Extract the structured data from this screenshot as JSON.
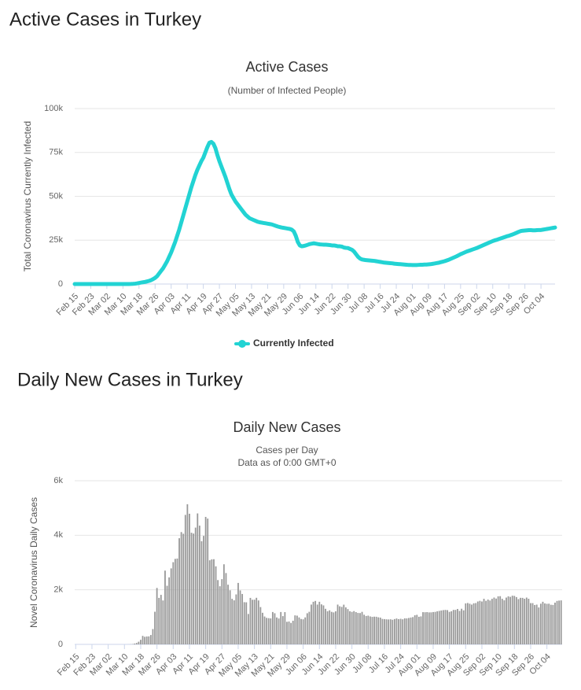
{
  "headings": [
    "Active Cases in Turkey",
    "Daily New Cases in Turkey"
  ],
  "chart_data": [
    {
      "type": "line",
      "title": "Active Cases",
      "subtitle": "(Number of Infected People)",
      "y_label": "Total Coronavirus Currently Infected",
      "ylim": [
        0,
        100000
      ],
      "yticks": [
        0,
        {
          "value": 25000,
          "label": "25k"
        },
        {
          "value": 50000,
          "label": "50k"
        },
        {
          "value": 75000,
          "label": "75k"
        },
        {
          "value": 100000,
          "label": "100k"
        }
      ],
      "grid": true,
      "legend": "bottom",
      "categories": [
        "Feb 15",
        null,
        null,
        null,
        null,
        null,
        null,
        null,
        "Feb 23",
        null,
        null,
        null,
        null,
        null,
        null,
        null,
        "Mar 02",
        null,
        null,
        null,
        null,
        null,
        null,
        null,
        "Mar 10",
        null,
        null,
        null,
        null,
        null,
        null,
        null,
        "Mar 18",
        null,
        null,
        null,
        null,
        null,
        null,
        null,
        "Mar 26",
        null,
        null,
        null,
        null,
        null,
        null,
        null,
        "Apr 03",
        null,
        null,
        null,
        null,
        null,
        null,
        null,
        "Apr 11",
        null,
        null,
        null,
        null,
        null,
        null,
        null,
        "Apr 19",
        null,
        null,
        null,
        null,
        null,
        null,
        null,
        "Apr 27",
        null,
        null,
        null,
        null,
        null,
        null,
        null,
        "May 05",
        null,
        null,
        null,
        null,
        null,
        null,
        null,
        "May 13",
        null,
        null,
        null,
        null,
        null,
        null,
        null,
        "May 21",
        null,
        null,
        null,
        null,
        null,
        null,
        null,
        "May 29",
        null,
        null,
        null,
        null,
        null,
        null,
        null,
        "Jun 06",
        null,
        null,
        null,
        null,
        null,
        null,
        null,
        "Jun 14",
        null,
        null,
        null,
        null,
        null,
        null,
        null,
        "Jun 22",
        null,
        null,
        null,
        null,
        null,
        null,
        null,
        "Jun 30",
        null,
        null,
        null,
        null,
        null,
        null,
        null,
        "Jul 08",
        null,
        null,
        null,
        null,
        null,
        null,
        null,
        "Jul 16",
        null,
        null,
        null,
        null,
        null,
        null,
        null,
        "Jul 24",
        null,
        null,
        null,
        null,
        null,
        null,
        null,
        "Aug 01",
        null,
        null,
        null,
        null,
        null,
        null,
        null,
        "Aug 09",
        null,
        null,
        null,
        null,
        null,
        null,
        null,
        "Aug 17",
        null,
        null,
        null,
        null,
        null,
        null,
        null,
        "Aug 25",
        null,
        null,
        null,
        null,
        null,
        null,
        null,
        "Sep 02",
        null,
        null,
        null,
        null,
        null,
        null,
        null,
        "Sep 10",
        null,
        null,
        null,
        null,
        null,
        null,
        null,
        "Sep 18",
        null,
        null,
        null,
        null,
        null,
        null,
        null,
        "Sep 26",
        null,
        null,
        null,
        null,
        null,
        null,
        null,
        "Oct 04",
        null,
        null,
        null,
        null,
        null,
        null,
        null
      ],
      "series": [
        {
          "name": "Currently Infected",
          "color": "#22d3d3",
          "values": [
            0,
            0,
            0,
            0,
            0,
            0,
            0,
            0,
            0,
            0,
            0,
            0,
            0,
            0,
            0,
            0,
            0,
            0,
            0,
            0,
            0,
            0,
            0,
            0,
            0,
            1,
            5,
            18,
            47,
            98,
            191,
            359,
            600,
            800,
            1000,
            1200,
            1500,
            1800,
            2200,
            2800,
            3500,
            4500,
            6000,
            7500,
            9000,
            11000,
            13000,
            15500,
            18000,
            21000,
            24000,
            27500,
            31000,
            35000,
            39000,
            43000,
            47000,
            51000,
            55000,
            58500,
            62000,
            65000,
            67500,
            70000,
            72000,
            75000,
            78000,
            80500,
            81000,
            80000,
            77500,
            73500,
            70000,
            67000,
            64000,
            61000,
            57500,
            54000,
            51000,
            49000,
            47000,
            45500,
            44000,
            42500,
            41000,
            39500,
            38500,
            37500,
            37000,
            36500,
            36000,
            35500,
            35200,
            35000,
            34800,
            34600,
            34400,
            34200,
            34000,
            33600,
            33200,
            32800,
            32500,
            32200,
            32000,
            31800,
            31600,
            31400,
            31000,
            30000,
            27500,
            24000,
            22000,
            21500,
            21700,
            22000,
            22400,
            22800,
            23000,
            23200,
            23000,
            22800,
            22600,
            22500,
            22400,
            22400,
            22300,
            22200,
            22000,
            22000,
            21800,
            21500,
            21500,
            21300,
            20800,
            20600,
            20500,
            20000,
            19500,
            18500,
            17000,
            15500,
            14500,
            14000,
            13800,
            13600,
            13500,
            13400,
            13300,
            13200,
            13000,
            12800,
            12600,
            12400,
            12200,
            12100,
            12000,
            11900,
            11800,
            11600,
            11500,
            11400,
            11300,
            11200,
            11100,
            11000,
            10900,
            10900,
            10800,
            10800,
            10800,
            10900,
            11000,
            11000,
            11100,
            11100,
            11200,
            11300,
            11500,
            11700,
            11900,
            12100,
            12400,
            12700,
            13000,
            13400,
            13800,
            14300,
            14800,
            15300,
            15800,
            16400,
            17000,
            17500,
            18000,
            18500,
            18900,
            19300,
            19700,
            20100,
            20500,
            21000,
            21500,
            22000,
            22500,
            23000,
            23500,
            24000,
            24500,
            24900,
            25200,
            25600,
            26000,
            26400,
            26800,
            27200,
            27500,
            27900,
            28300,
            28800,
            29300,
            29800,
            30200,
            30400,
            30500,
            30600,
            30700,
            30700,
            30600,
            30600,
            30700,
            30800,
            30800,
            31000,
            31200,
            31400,
            31600,
            31800,
            32000,
            32200
          ]
        }
      ]
    },
    {
      "type": "bar",
      "title": "Daily New Cases",
      "subtitle": [
        "Cases per Day",
        "Data as of 0:00 GMT+0"
      ],
      "y_label": "Novel Coronavirus Daily Cases",
      "ylim": [
        0,
        6000
      ],
      "yticks": [
        0,
        {
          "value": 2000,
          "label": "2k"
        },
        {
          "value": 4000,
          "label": "4k"
        },
        {
          "value": 6000,
          "label": "6k"
        }
      ],
      "grid": true,
      "color": "#999999",
      "categories": [
        "Feb 15",
        null,
        null,
        null,
        null,
        null,
        null,
        null,
        "Feb 23",
        null,
        null,
        null,
        null,
        null,
        null,
        null,
        "Mar 02",
        null,
        null,
        null,
        null,
        null,
        null,
        null,
        "Mar 10",
        null,
        null,
        null,
        null,
        null,
        null,
        null,
        "Mar 18",
        null,
        null,
        null,
        null,
        null,
        null,
        null,
        "Mar 26",
        null,
        null,
        null,
        null,
        null,
        null,
        null,
        "Apr 03",
        null,
        null,
        null,
        null,
        null,
        null,
        null,
        "Apr 11",
        null,
        null,
        null,
        null,
        null,
        null,
        null,
        "Apr 19",
        null,
        null,
        null,
        null,
        null,
        null,
        null,
        "Apr 27",
        null,
        null,
        null,
        null,
        null,
        null,
        null,
        "May 05",
        null,
        null,
        null,
        null,
        null,
        null,
        null,
        "May 13",
        null,
        null,
        null,
        null,
        null,
        null,
        null,
        "May 21",
        null,
        null,
        null,
        null,
        null,
        null,
        null,
        "May 29",
        null,
        null,
        null,
        null,
        null,
        null,
        null,
        "Jun 06",
        null,
        null,
        null,
        null,
        null,
        null,
        null,
        "Jun 14",
        null,
        null,
        null,
        null,
        null,
        null,
        null,
        "Jun 22",
        null,
        null,
        null,
        null,
        null,
        null,
        null,
        "Jun 30",
        null,
        null,
        null,
        null,
        null,
        null,
        null,
        "Jul 08",
        null,
        null,
        null,
        null,
        null,
        null,
        null,
        "Jul 16",
        null,
        null,
        null,
        null,
        null,
        null,
        null,
        "Jul 24",
        null,
        null,
        null,
        null,
        null,
        null,
        null,
        "Aug 01",
        null,
        null,
        null,
        null,
        null,
        null,
        null,
        "Aug 09",
        null,
        null,
        null,
        null,
        null,
        null,
        null,
        "Aug 17",
        null,
        null,
        null,
        null,
        null,
        null,
        null,
        "Aug 25",
        null,
        null,
        null,
        null,
        null,
        null,
        null,
        "Sep 02",
        null,
        null,
        null,
        null,
        null,
        null,
        null,
        "Sep 10",
        null,
        null,
        null,
        null,
        null,
        null,
        null,
        "Sep 18",
        null,
        null,
        null,
        null,
        null,
        null,
        null,
        "Sep 26",
        null,
        null,
        null,
        null,
        null,
        null,
        null,
        "Oct 04",
        null,
        null,
        null,
        null,
        null,
        null,
        null
      ],
      "values": [
        0,
        0,
        0,
        0,
        0,
        0,
        0,
        0,
        0,
        0,
        0,
        0,
        0,
        0,
        0,
        0,
        0,
        0,
        0,
        0,
        0,
        0,
        0,
        0,
        0,
        0,
        1,
        4,
        11,
        29,
        52,
        98,
        168,
        311,
        277,
        289,
        293,
        343,
        561,
        1196,
        2069,
        1704,
        1815,
        1610,
        2704,
        2148,
        2456,
        2786,
        3013,
        3135,
        3148,
        3892,
        4117,
        4056,
        4747,
        5138,
        4789,
        4093,
        4062,
        4281,
        4801,
        4353,
        3783,
        3977,
        4674,
        4611,
        3083,
        3116,
        3122,
        2861,
        2357,
        2131,
        2392,
        2936,
        2615,
        2188,
        1983,
        1670,
        1614,
        1832,
        2253,
        1977,
        1848,
        1546,
        1542,
        1114,
        1704,
        1635,
        1639,
        1708,
        1610,
        1368,
        1158,
        1022,
        972,
        961,
        952,
        1186,
        1141,
        987,
        948,
        1186,
        1035,
        1182,
        827,
        839,
        786,
        867,
        1063,
        1053,
        988,
        930,
        918,
        989,
        1141,
        1195,
        1459,
        1562,
        1592,
        1459,
        1562,
        1467,
        1429,
        1304,
        1214,
        1248,
        1192,
        1172,
        1212,
        1458,
        1396,
        1374,
        1455,
        1356,
        1293,
        1214,
        1191,
        1219,
        1182,
        1152,
        1148,
        1192,
        1086,
        1041,
        1053,
        1024,
        1008,
        1016,
        1012,
        992,
        982,
        933,
        926,
        918,
        913,
        919,
        902,
        928,
        948,
        925,
        937,
        919,
        954,
        952,
        967,
        983,
        1000,
        1066,
        1083,
        1011,
        1026,
        1181,
        1178,
        1183,
        1172,
        1174,
        1185,
        1191,
        1212,
        1226,
        1243,
        1256,
        1263,
        1256,
        1192,
        1214,
        1263,
        1263,
        1298,
        1226,
        1306,
        1248,
        1502,
        1517,
        1491,
        1458,
        1505,
        1514,
        1572,
        1596,
        1572,
        1671,
        1596,
        1642,
        1608,
        1669,
        1716,
        1679,
        1761,
        1767,
        1671,
        1617,
        1716,
        1761,
        1742,
        1785,
        1777,
        1734,
        1660,
        1707,
        1705,
        1673,
        1716,
        1673,
        1513,
        1512,
        1443,
        1457,
        1353,
        1491,
        1562,
        1502,
        1487,
        1491,
        1452,
        1446,
        1530,
        1593,
        1605,
        1613
      ]
    }
  ]
}
